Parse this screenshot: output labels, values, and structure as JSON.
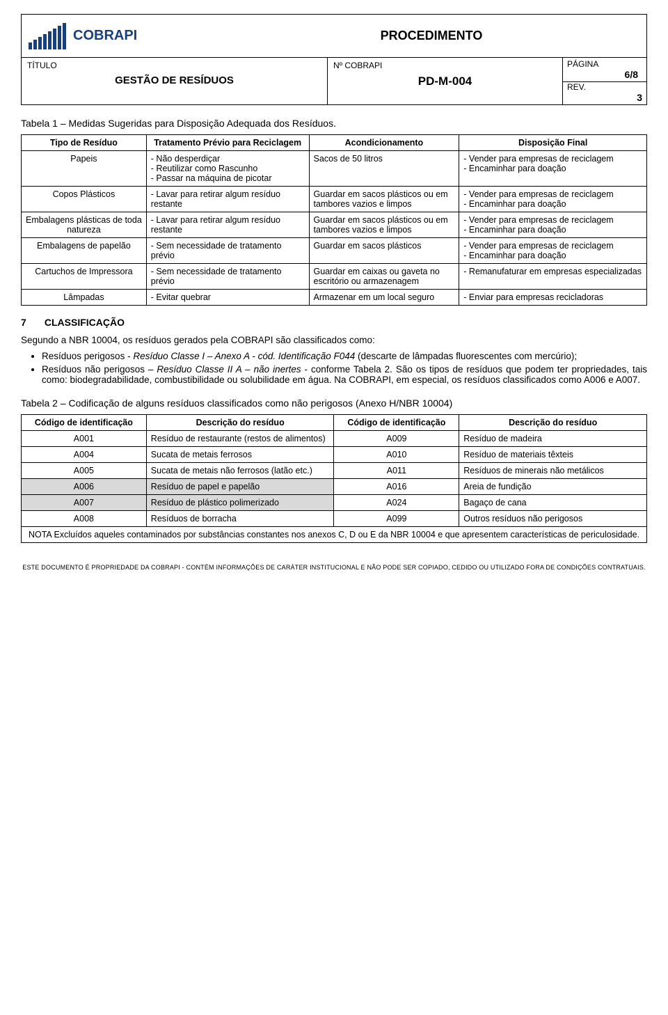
{
  "header": {
    "procedimento": "PROCEDIMENTO",
    "titulo_label": "TÍTULO",
    "titulo": "GESTÃO DE RESÍDUOS",
    "ncobrapi_label": "Nº COBRAPI",
    "code": "PD-M-004",
    "pagina_label": "PÁGINA",
    "pagina": "6/8",
    "rev_label": "REV.",
    "rev": "3",
    "logo_text": "COBRAPI",
    "logo_bar_color": "#1a3f7a"
  },
  "table1": {
    "caption": "Tabela 1 – Medidas Sugeridas para Disposição Adequada dos Resíduos.",
    "headers": [
      "Tipo de Resíduo",
      "Tratamento Prévio para Reciclagem",
      "Acondicionamento",
      "Disposição Final"
    ],
    "rows": [
      {
        "tipo": "Papeis",
        "trat": "- Não desperdiçar\n- Reutilizar como Rascunho\n- Passar na máquina de picotar",
        "acond": "Sacos de 50 litros",
        "disp": "- Vender para empresas de reciclagem\n- Encaminhar para doação"
      },
      {
        "tipo": "Copos Plásticos",
        "trat": "- Lavar para retirar algum resíduo restante",
        "acond": "Guardar em sacos plásticos ou em tambores vazios e limpos",
        "disp": "- Vender para empresas de reciclagem\n- Encaminhar para doação"
      },
      {
        "tipo": "Embalagens plásticas de toda natureza",
        "trat": "- Lavar para retirar algum resíduo restante",
        "acond": "Guardar em sacos plásticos ou em tambores vazios e limpos",
        "disp": "- Vender para empresas de reciclagem\n- Encaminhar para doação"
      },
      {
        "tipo": "Embalagens de papelão",
        "trat": "- Sem necessidade de tratamento prévio",
        "acond": "Guardar em sacos plásticos",
        "disp": "- Vender para empresas de reciclagem\n- Encaminhar para doação"
      },
      {
        "tipo": "Cartuchos de Impressora",
        "trat": "- Sem necessidade de tratamento prévio",
        "acond": "Guardar em caixas ou gaveta no escritório ou armazenagem",
        "disp": "- Remanufaturar em empresas especializadas"
      },
      {
        "tipo": "Lâmpadas",
        "trat": "- Evitar quebrar",
        "acond": "Armazenar em um local seguro",
        "disp": "- Enviar para empresas recicladoras"
      }
    ]
  },
  "section7": {
    "num": "7",
    "title": "CLASSIFICAÇÃO",
    "intro": "Segundo a NBR 10004, os resíduos gerados pela COBRAPI são classificados como:",
    "bullet1_a": "Resíduos perigosos - ",
    "bullet1_em": "Resíduo Classe I – Anexo A - cód. Identificação F044",
    "bullet1_b": " (descarte de lâmpadas fluorescentes com mercúrio);",
    "bullet2_a": "Resíduos não perigosos – ",
    "bullet2_em": "Resíduo Classe II A – não inertes",
    "bullet2_b": " - conforme Tabela 2. São os tipos de resíduos que podem ter propriedades, tais como: biodegradabilidade, combustibilidade ou solubilidade em água. Na COBRAPI, em especial, os resíduos classificados como A006 e A007."
  },
  "table2": {
    "caption": "Tabela 2 – Codificação de alguns resíduos classificados como não perigosos (Anexo H/NBR 10004)",
    "headers": [
      "Código de identificação",
      "Descrição do resíduo",
      "Código de identificação",
      "Descrição do resíduo"
    ],
    "rows": [
      {
        "c1": "A001",
        "d1": "Resíduo de restaurante (restos de alimentos)",
        "c2": "A009",
        "d2": "Resíduo de madeira",
        "shade": false
      },
      {
        "c1": "A004",
        "d1": "Sucata de metais ferrosos",
        "c2": "A010",
        "d2": "Resíduo de materiais têxteis",
        "shade": false
      },
      {
        "c1": "A005",
        "d1": "Sucata de metais não ferrosos (latão etc.)",
        "c2": "A011",
        "d2": "Resíduos de minerais não metálicos",
        "shade": false
      },
      {
        "c1": "A006",
        "d1": "Resíduo de papel e papelão",
        "c2": "A016",
        "d2": "Areia de fundição",
        "shade": true
      },
      {
        "c1": "A007",
        "d1": "Resíduo de plástico polimerizado",
        "c2": "A024",
        "d2": "Bagaço de cana",
        "shade": true
      },
      {
        "c1": "A008",
        "d1": "Resíduos de borracha",
        "c2": "A099",
        "d2": "Outros resíduos não perigosos",
        "shade": false
      }
    ],
    "nota": "NOTA Excluídos aqueles contaminados por substâncias constantes nos anexos C, D ou E da NBR 10004 e que apresentem características de periculosidade."
  },
  "footer": "ESTE DOCUMENTO É  PROPRIEDADE DA COBRAPI - CONTÉM  INFORMAÇÕES DE CARÁTER INSTITUCIONAL E NÃO PODE SER COPIADO, CEDIDO OU UTILIZADO FORA DE CONDIÇÕES CONTRATUAIS."
}
